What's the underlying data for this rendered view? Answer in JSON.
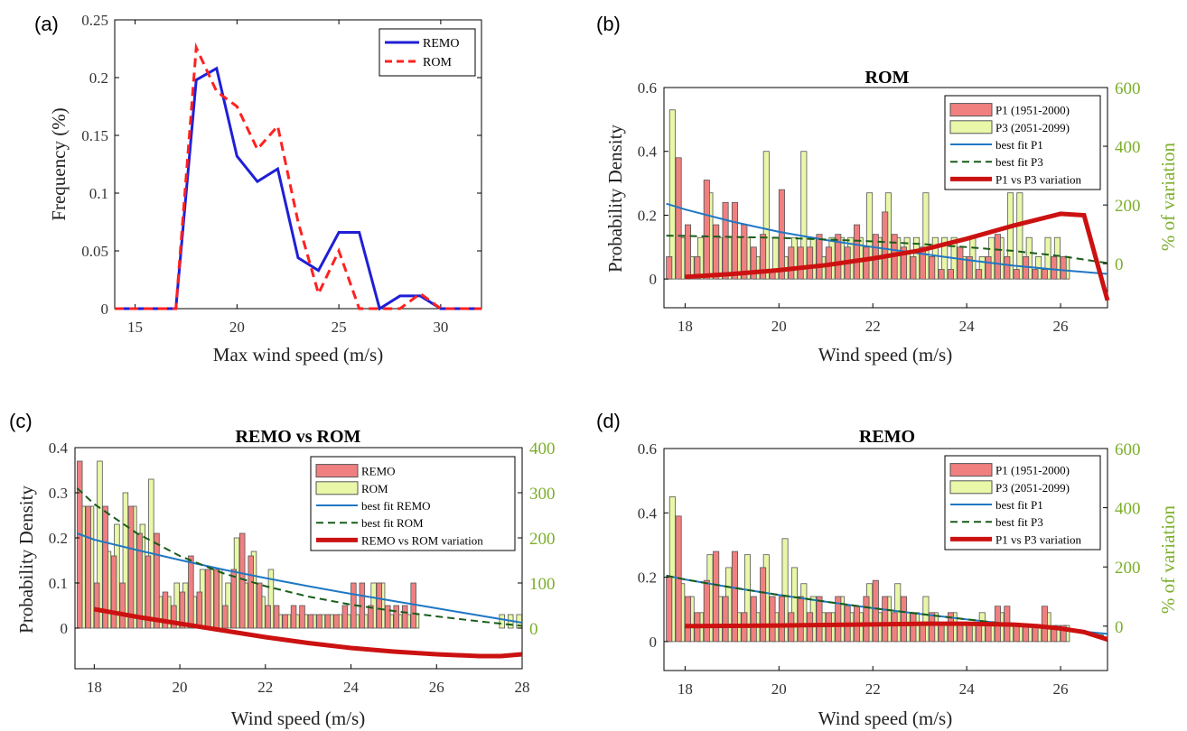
{
  "chart_data": [
    {
      "panel": "(a)",
      "type": "line",
      "title": "",
      "xlabel": "Max wind speed (m/s)",
      "ylabel": "Frequency (%)",
      "xlim": [
        14,
        32
      ],
      "ylim": [
        0,
        0.25
      ],
      "xticks": [
        "15",
        "20",
        "25",
        "30"
      ],
      "yticks": [
        "0",
        "0.05",
        "0.1",
        "0.15",
        "0.2",
        "0.25"
      ],
      "legend_position": "top-right",
      "series": [
        {
          "name": "REMO",
          "color": "#1f1fd6",
          "dash": "solid",
          "x": [
            14,
            15,
            16,
            17,
            18,
            19,
            20,
            21,
            22,
            23,
            24,
            25,
            26,
            27,
            28,
            29,
            30,
            31,
            32
          ],
          "y": [
            0,
            0,
            0,
            0,
            0.198,
            0.208,
            0.132,
            0.11,
            0.121,
            0.044,
            0.033,
            0.066,
            0.066,
            0,
            0.011,
            0.011,
            0,
            0,
            0
          ]
        },
        {
          "name": "ROM",
          "color": "#ff2020",
          "dash": "dashed",
          "x": [
            14,
            15,
            16,
            17,
            18,
            19,
            20,
            21,
            22,
            23,
            24,
            25,
            26,
            27,
            28,
            29,
            30,
            31,
            32
          ],
          "y": [
            0,
            0,
            0,
            0,
            0.226,
            0.188,
            0.175,
            0.138,
            0.158,
            0.075,
            0.013,
            0.05,
            0,
            0,
            0,
            0.013,
            0,
            0,
            0
          ]
        }
      ]
    },
    {
      "panel": "(b)",
      "type": "bar",
      "title": "ROM",
      "xlabel": "Wind speed (m/s)",
      "ylabel": "Probability Density",
      "y2label": "% of variation",
      "xlim": [
        17.55,
        27
      ],
      "ylim": [
        -0.09,
        0.6
      ],
      "y2lim": [
        -150,
        600
      ],
      "xticks": [
        "18",
        "20",
        "22",
        "24",
        "26"
      ],
      "yticks": [
        "0",
        "0.2",
        "0.4",
        "0.6"
      ],
      "y2ticks": [
        "0",
        "200",
        "400",
        "600"
      ],
      "legend_position": "top-right",
      "legend": [
        "P1 (1951-2000)",
        "P3 (2051-2099)",
        "best fit P1",
        "best fit P3",
        "P1 vs P3 variation"
      ],
      "bin_width": 0.2,
      "bins_start": 17.6,
      "series": [
        {
          "name": "P1 (1951-2000)",
          "color": "#f08080",
          "values": [
            0.07,
            0.38,
            0.17,
            0.07,
            0.31,
            0.17,
            0.24,
            0.24,
            0.17,
            0.1,
            0.14,
            0.03,
            0.28,
            0.1,
            0.1,
            0.1,
            0.14,
            0.1,
            0.14,
            0.1,
            0.17,
            0.1,
            0.14,
            0.21,
            0.14,
            0.1,
            0.07,
            0.1,
            0.07,
            0.03,
            0.03,
            0.1,
            0.07,
            0.03,
            0.07,
            0.14,
            0.07,
            0.03,
            0.07,
            0.03,
            0.03,
            0.07,
            0.07
          ]
        },
        {
          "name": "P3 (2051-2099)",
          "color": "#e8f8a8",
          "values": [
            0.53,
            0.13,
            0.07,
            0.13,
            0.27,
            0.13,
            0.13,
            0.13,
            0.13,
            0.07,
            0.4,
            0.13,
            0.07,
            0.13,
            0.4,
            0.13,
            0.07,
            0.13,
            0.13,
            0.13,
            0.13,
            0.27,
            0.13,
            0.27,
            0.13,
            0.13,
            0.13,
            0.27,
            0.13,
            0.13,
            0.13,
            0.07,
            0.13,
            0.07,
            0.13,
            0.13,
            0.27,
            0.27,
            0.13,
            0.07,
            0.13,
            0.13,
            0.07
          ]
        },
        {
          "name": "best fit P1",
          "color": "#1f77c4",
          "dash": "solid",
          "x": [
            17.6,
            18,
            19,
            20,
            21,
            22,
            23,
            24,
            25,
            26,
            27
          ],
          "y": [
            0.236,
            0.218,
            0.18,
            0.148,
            0.122,
            0.1,
            0.08,
            0.06,
            0.042,
            0.028,
            0.016
          ]
        },
        {
          "name": "best fit P3",
          "color": "#1a5c1a",
          "dash": "dashed",
          "x": [
            17.6,
            18,
            19,
            20,
            21,
            22,
            23,
            24,
            25,
            26,
            27
          ],
          "y": [
            0.136,
            0.135,
            0.132,
            0.129,
            0.124,
            0.118,
            0.11,
            0.1,
            0.088,
            0.072,
            0.05
          ]
        },
        {
          "name": "P1 vs P3 variation",
          "color": "#cc1111",
          "dash": "solid",
          "axis": "right",
          "x": [
            18,
            19,
            20,
            21,
            22,
            23,
            24,
            25,
            26,
            26.5,
            27
          ],
          "y": [
            -45,
            -35,
            -22,
            -5,
            18,
            45,
            85,
            130,
            170,
            165,
            -125
          ]
        }
      ]
    },
    {
      "panel": "(c)",
      "type": "bar",
      "title": "REMO vs ROM",
      "xlabel": "Wind speed (m/s)",
      "ylabel": "Probability Density",
      "y2label": "",
      "xlim": [
        17.55,
        28
      ],
      "ylim": [
        -0.09,
        0.4
      ],
      "y2lim": [
        -90,
        400
      ],
      "xticks": [
        "18",
        "20",
        "22",
        "24",
        "26",
        "28"
      ],
      "yticks": [
        "0",
        "0.1",
        "0.2",
        "0.3",
        "0.4"
      ],
      "y2ticks": [
        "0",
        "100",
        "200",
        "300",
        "400"
      ],
      "legend_position": "top-right",
      "legend": [
        "REMO",
        "ROM",
        "best fit REMO",
        "best fit ROM",
        "REMO vs ROM variation"
      ],
      "bin_width": 0.2,
      "bins_start": 17.6,
      "series": [
        {
          "name": "REMO",
          "color": "#f08080",
          "values": [
            0.37,
            0.27,
            0.1,
            0.27,
            0.16,
            0.1,
            0.27,
            0.21,
            0.16,
            0.21,
            0.08,
            0.05,
            0.08,
            0.16,
            0.08,
            0.13,
            0.13,
            0.05,
            0.13,
            0.21,
            0.16,
            0.1,
            0.05,
            0.05,
            0.03,
            0.05,
            0.05,
            0.03,
            0.03,
            0.03,
            0.03,
            0.05,
            0.1,
            0.1,
            0.05,
            0.1,
            0.05,
            0.05,
            0.05,
            0.1,
            0.0,
            0.0,
            0.0,
            0.0,
            0.0,
            0.0,
            0.0,
            0.0,
            0.0,
            0.0,
            0.0,
            0.0
          ]
        },
        {
          "name": "ROM",
          "color": "#e8f8a8",
          "values": [
            0.27,
            0.27,
            0.37,
            0.17,
            0.23,
            0.3,
            0.27,
            0.23,
            0.33,
            0.07,
            0.07,
            0.1,
            0.1,
            0.07,
            0.13,
            0.13,
            0.13,
            0.1,
            0.2,
            0.1,
            0.17,
            0.07,
            0.13,
            0.03,
            0.03,
            0.03,
            0.03,
            0.03,
            0.03,
            0.03,
            0.03,
            0.03,
            0.03,
            0.03,
            0.1,
            0.1,
            0.03,
            0.03,
            0.03,
            0.03,
            0.0,
            0.0,
            0.0,
            0.0,
            0.0,
            0.0,
            0.0,
            0.0,
            0.0,
            0.03,
            0.03,
            0.03
          ]
        },
        {
          "name": "best fit REMO",
          "color": "#1f77c4",
          "dash": "solid",
          "x": [
            17.6,
            18,
            19,
            20,
            21,
            22,
            23,
            24,
            25,
            26,
            27,
            28
          ],
          "y": [
            0.21,
            0.196,
            0.173,
            0.151,
            0.13,
            0.111,
            0.093,
            0.076,
            0.06,
            0.044,
            0.028,
            0.012
          ]
        },
        {
          "name": "best fit ROM",
          "color": "#1a5c1a",
          "dash": "dashed",
          "x": [
            17.6,
            18,
            19,
            20,
            21,
            22,
            23,
            24,
            25,
            26,
            27,
            28
          ],
          "y": [
            0.31,
            0.275,
            0.21,
            0.16,
            0.122,
            0.093,
            0.07,
            0.052,
            0.038,
            0.026,
            0.015,
            0.005
          ]
        },
        {
          "name": "REMO vs ROM variation",
          "color": "#cc1111",
          "dash": "solid",
          "axis": "right",
          "x": [
            18,
            19,
            20,
            21,
            22,
            23,
            24,
            25,
            26,
            27,
            27.5,
            28
          ],
          "y": [
            42,
            25,
            10,
            -5,
            -20,
            -33,
            -44,
            -52,
            -58,
            -62,
            -62,
            -58
          ]
        }
      ]
    },
    {
      "panel": "(d)",
      "type": "bar",
      "title": "REMO",
      "xlabel": "Wind speed (m/s)",
      "ylabel": "",
      "y2label": "% of variation",
      "xlim": [
        17.55,
        27
      ],
      "ylim": [
        -0.09,
        0.6
      ],
      "y2lim": [
        -150,
        600
      ],
      "xticks": [
        "18",
        "20",
        "22",
        "24",
        "26"
      ],
      "yticks": [
        "0",
        "0.2",
        "0.4",
        "0.6"
      ],
      "y2ticks": [
        "0",
        "200",
        "400",
        "600"
      ],
      "legend_position": "top-right",
      "legend": [
        "P1 (1951-2000)",
        "P3 (2051-2099)",
        "best fit P1",
        "best fit P3",
        "P1 vs P3 variation"
      ],
      "bin_width": 0.2,
      "bins_start": 17.6,
      "series": [
        {
          "name": "P1 (1951-2000)",
          "color": "#f08080",
          "values": [
            0.2,
            0.39,
            0.14,
            0.09,
            0.19,
            0.28,
            0.14,
            0.28,
            0.09,
            0.14,
            0.23,
            0.14,
            0.14,
            0.09,
            0.14,
            0.09,
            0.14,
            0.09,
            0.14,
            0.11,
            0.11,
            0.14,
            0.19,
            0.14,
            0.09,
            0.14,
            0.09,
            0.05,
            0.09,
            0.05,
            0.09,
            0.05,
            0.05,
            0.05,
            0.05,
            0.11,
            0.11,
            0.05,
            0.05,
            0.05,
            0.11,
            0.05,
            0.05
          ]
        },
        {
          "name": "P3 (2051-2099)",
          "color": "#e8f8a8",
          "values": [
            0.45,
            0.18,
            0.14,
            0.09,
            0.27,
            0.14,
            0.23,
            0.09,
            0.27,
            0.09,
            0.27,
            0.09,
            0.32,
            0.23,
            0.18,
            0.14,
            0.09,
            0.09,
            0.14,
            0.09,
            0.09,
            0.18,
            0.09,
            0.14,
            0.18,
            0.09,
            0.09,
            0.14,
            0.09,
            0.05,
            0.09,
            0.05,
            0.05,
            0.09,
            0.05,
            0.09,
            0.05,
            0.05,
            0.05,
            0.05,
            0.09,
            0.05,
            0.05
          ]
        },
        {
          "name": "best fit P1",
          "color": "#1f77c4",
          "dash": "solid",
          "x": [
            17.6,
            18,
            19,
            20,
            21,
            22,
            23,
            24,
            25,
            26,
            27
          ],
          "y": [
            0.205,
            0.193,
            0.168,
            0.145,
            0.124,
            0.104,
            0.086,
            0.069,
            0.053,
            0.038,
            0.024
          ]
        },
        {
          "name": "best fit P3",
          "color": "#1a5c1a",
          "dash": "dashed",
          "x": [
            17.6,
            18,
            19,
            20,
            21,
            22,
            23,
            24,
            25,
            26,
            27
          ],
          "y": [
            0.205,
            0.193,
            0.168,
            0.145,
            0.124,
            0.104,
            0.086,
            0.069,
            0.053,
            0.038,
            0.016
          ]
        },
        {
          "name": "P1 vs P3 variation",
          "color": "#cc1111",
          "dash": "solid",
          "axis": "right",
          "x": [
            18,
            19,
            20,
            21,
            22,
            23,
            24,
            25,
            25.5,
            26,
            26.5,
            27
          ],
          "y": [
            0,
            1,
            2,
            4,
            6,
            8,
            8,
            5,
            0,
            -8,
            -20,
            -45
          ]
        }
      ]
    }
  ]
}
